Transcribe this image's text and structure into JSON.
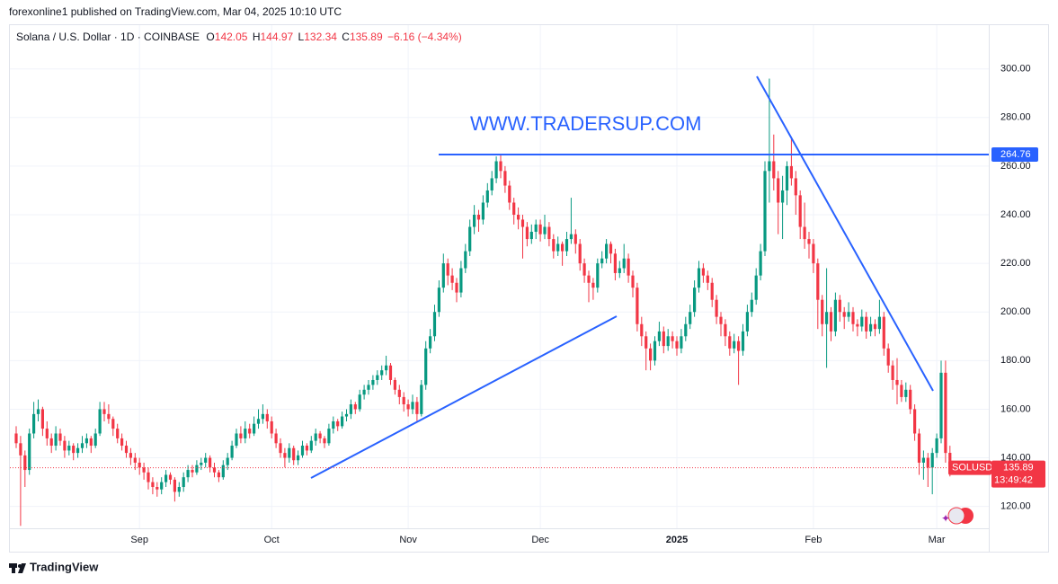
{
  "header": {
    "published": "forexonline1 published on TradingView.com, Mar 04, 2025 10:10 UTC",
    "symbol": "Solana / U.S. Dollar · 1D · COINBASE",
    "ohlc_labels": [
      "O",
      "H",
      "L",
      "C"
    ],
    "change": "−6.16 (−4.34%)",
    "watermark": "WWW.TRADERSUP.COM",
    "ticker": "SOLUSD",
    "countdown": "13:49:42",
    "footer": "TradingView"
  },
  "chart_data": {
    "type": "candlestick",
    "up_color": "#089981",
    "down_color": "#f23645",
    "line_color": "#2962ff",
    "grid": true,
    "ylim": [
      111,
      318
    ],
    "yticks": [
      {
        "value": 120,
        "label": "120.00"
      },
      {
        "value": 140,
        "label": "140.00"
      },
      {
        "value": 160,
        "label": "160.00"
      },
      {
        "value": 180,
        "label": "180.00"
      },
      {
        "value": 200,
        "label": "200.00"
      },
      {
        "value": 220,
        "label": "220.00"
      },
      {
        "value": 240,
        "label": "240.00"
      },
      {
        "value": 260,
        "label": "260.00"
      },
      {
        "value": 280,
        "label": "280.00"
      },
      {
        "value": 300,
        "label": "300.00"
      }
    ],
    "hline": 264.76,
    "categories": [
      null,
      null,
      null,
      null,
      null,
      null,
      null,
      null,
      null,
      null,
      null,
      null,
      null,
      null,
      null,
      null,
      null,
      null,
      null,
      null,
      null,
      null,
      null,
      null,
      null,
      null,
      null,
      null,
      "Sep",
      null,
      null,
      null,
      null,
      null,
      null,
      null,
      null,
      null,
      null,
      null,
      null,
      null,
      null,
      null,
      null,
      null,
      null,
      null,
      null,
      null,
      null,
      null,
      null,
      null,
      null,
      null,
      null,
      null,
      "Oct",
      null,
      null,
      null,
      null,
      null,
      null,
      null,
      null,
      null,
      null,
      null,
      null,
      null,
      null,
      null,
      null,
      null,
      null,
      null,
      null,
      null,
      null,
      null,
      null,
      null,
      null,
      null,
      null,
      null,
      null,
      "Nov",
      null,
      null,
      null,
      null,
      null,
      null,
      null,
      null,
      null,
      null,
      null,
      null,
      null,
      null,
      null,
      null,
      null,
      null,
      null,
      null,
      null,
      null,
      null,
      null,
      null,
      null,
      null,
      null,
      null,
      "Dec",
      null,
      null,
      null,
      null,
      null,
      null,
      null,
      null,
      null,
      null,
      null,
      null,
      null,
      null,
      null,
      null,
      null,
      null,
      null,
      null,
      null,
      null,
      null,
      null,
      null,
      null,
      null,
      null,
      null,
      null,
      "2025",
      null,
      null,
      null,
      null,
      null,
      null,
      null,
      null,
      null,
      null,
      null,
      null,
      null,
      null,
      null,
      null,
      null,
      null,
      null,
      null,
      null,
      null,
      null,
      null,
      null,
      null,
      null,
      null,
      null,
      null,
      "Feb",
      null,
      null,
      null,
      null,
      null,
      null,
      null,
      null,
      null,
      null,
      null,
      null,
      null,
      null,
      null,
      null,
      null,
      null,
      null,
      null,
      null,
      null,
      null,
      null,
      null,
      null,
      null,
      "Mar",
      null,
      null,
      null
    ],
    "candles": [
      [
        150,
        153,
        144,
        146
      ],
      [
        146,
        149,
        112,
        141
      ],
      [
        141,
        143,
        128,
        135
      ],
      [
        135,
        152,
        133,
        150
      ],
      [
        150,
        163,
        148,
        158
      ],
      [
        158,
        164,
        155,
        160
      ],
      [
        160,
        161,
        149,
        152
      ],
      [
        152,
        155,
        145,
        148
      ],
      [
        148,
        150,
        142,
        145
      ],
      [
        145,
        153,
        143,
        150
      ],
      [
        150,
        152,
        145,
        147
      ],
      [
        147,
        149,
        140,
        143
      ],
      [
        143,
        147,
        141,
        145
      ],
      [
        145,
        146,
        139,
        142
      ],
      [
        142,
        146,
        140,
        144
      ],
      [
        144,
        149,
        142,
        146
      ],
      [
        146,
        150,
        144,
        148
      ],
      [
        148,
        149,
        142,
        145
      ],
      [
        145,
        152,
        144,
        150
      ],
      [
        150,
        163,
        149,
        160
      ],
      [
        160,
        163,
        155,
        158
      ],
      [
        158,
        162,
        154,
        156
      ],
      [
        156,
        157,
        149,
        152
      ],
      [
        152,
        154,
        146,
        148
      ],
      [
        148,
        150,
        143,
        145
      ],
      [
        145,
        147,
        140,
        142
      ],
      [
        142,
        144,
        137,
        140
      ],
      [
        140,
        142,
        135,
        138
      ],
      [
        138,
        140,
        133,
        136
      ],
      [
        136,
        138,
        131,
        134
      ],
      [
        134,
        136,
        127,
        130
      ],
      [
        130,
        132,
        125,
        128
      ],
      [
        128,
        130,
        124,
        127
      ],
      [
        127,
        132,
        125,
        130
      ],
      [
        130,
        135,
        128,
        133
      ],
      [
        133,
        134,
        129,
        131
      ],
      [
        131,
        132,
        122,
        126
      ],
      [
        126,
        130,
        124,
        128
      ],
      [
        128,
        134,
        126,
        132
      ],
      [
        132,
        137,
        130,
        135
      ],
      [
        135,
        137,
        132,
        134
      ],
      [
        134,
        139,
        133,
        137
      ],
      [
        137,
        140,
        135,
        138
      ],
      [
        138,
        142,
        136,
        140
      ],
      [
        140,
        141,
        134,
        136
      ],
      [
        136,
        138,
        132,
        134
      ],
      [
        134,
        135,
        130,
        132
      ],
      [
        132,
        139,
        131,
        137
      ],
      [
        137,
        142,
        135,
        140
      ],
      [
        140,
        147,
        139,
        145
      ],
      [
        145,
        152,
        144,
        150
      ],
      [
        150,
        153,
        146,
        148
      ],
      [
        148,
        155,
        146,
        152
      ],
      [
        152,
        154,
        148,
        150
      ],
      [
        150,
        157,
        149,
        154
      ],
      [
        154,
        160,
        152,
        156
      ],
      [
        156,
        162,
        154,
        158
      ],
      [
        158,
        160,
        152,
        155
      ],
      [
        155,
        157,
        148,
        150
      ],
      [
        150,
        152,
        144,
        146
      ],
      [
        146,
        148,
        140,
        142
      ],
      [
        142,
        144,
        136,
        140
      ],
      [
        140,
        146,
        138,
        144
      ],
      [
        144,
        145,
        137,
        139
      ],
      [
        139,
        143,
        137,
        141
      ],
      [
        141,
        147,
        140,
        145
      ],
      [
        145,
        146,
        141,
        143
      ],
      [
        143,
        149,
        142,
        147
      ],
      [
        147,
        152,
        145,
        150
      ],
      [
        150,
        151,
        146,
        148
      ],
      [
        148,
        149,
        144,
        146
      ],
      [
        146,
        154,
        145,
        152
      ],
      [
        152,
        157,
        150,
        155
      ],
      [
        155,
        156,
        151,
        153
      ],
      [
        153,
        159,
        152,
        157
      ],
      [
        157,
        160,
        155,
        158
      ],
      [
        158,
        164,
        156,
        162
      ],
      [
        162,
        163,
        158,
        160
      ],
      [
        160,
        168,
        159,
        166
      ],
      [
        166,
        170,
        164,
        168
      ],
      [
        168,
        172,
        166,
        170
      ],
      [
        170,
        174,
        168,
        172
      ],
      [
        172,
        176,
        170,
        174
      ],
      [
        174,
        178,
        172,
        176
      ],
      [
        176,
        182,
        174,
        178
      ],
      [
        178,
        179,
        170,
        172
      ],
      [
        172,
        173,
        166,
        168
      ],
      [
        168,
        170,
        162,
        165
      ],
      [
        165,
        167,
        159,
        162
      ],
      [
        162,
        164,
        157,
        160
      ],
      [
        160,
        166,
        158,
        163
      ],
      [
        163,
        165,
        155,
        158
      ],
      [
        158,
        172,
        157,
        170
      ],
      [
        170,
        188,
        168,
        185
      ],
      [
        185,
        193,
        183,
        190
      ],
      [
        190,
        203,
        188,
        200
      ],
      [
        200,
        213,
        198,
        210
      ],
      [
        210,
        224,
        208,
        220
      ],
      [
        220,
        222,
        211,
        215
      ],
      [
        215,
        218,
        209,
        212
      ],
      [
        212,
        214,
        204,
        208
      ],
      [
        208,
        221,
        206,
        218
      ],
      [
        218,
        228,
        216,
        225
      ],
      [
        225,
        238,
        223,
        235
      ],
      [
        235,
        244,
        232,
        240
      ],
      [
        240,
        242,
        233,
        238
      ],
      [
        238,
        248,
        236,
        245
      ],
      [
        245,
        253,
        243,
        250
      ],
      [
        250,
        258,
        248,
        255
      ],
      [
        255,
        264,
        253,
        262
      ],
      [
        262,
        265,
        255,
        258
      ],
      [
        258,
        260,
        249,
        252
      ],
      [
        252,
        254,
        242,
        245
      ],
      [
        245,
        247,
        236,
        240
      ],
      [
        240,
        243,
        234,
        238
      ],
      [
        238,
        240,
        222,
        235
      ],
      [
        235,
        237,
        227,
        230
      ],
      [
        230,
        236,
        228,
        233
      ],
      [
        233,
        238,
        230,
        236
      ],
      [
        236,
        238,
        229,
        232
      ],
      [
        232,
        240,
        230,
        235
      ],
      [
        235,
        237,
        227,
        230
      ],
      [
        230,
        232,
        222,
        225
      ],
      [
        225,
        231,
        223,
        228
      ],
      [
        228,
        229,
        219,
        225
      ],
      [
        225,
        233,
        223,
        230
      ],
      [
        230,
        247,
        228,
        232
      ],
      [
        232,
        234,
        224,
        228
      ],
      [
        228,
        230,
        217,
        220
      ],
      [
        220,
        222,
        212,
        215
      ],
      [
        215,
        217,
        204,
        212
      ],
      [
        212,
        214,
        205,
        210
      ],
      [
        210,
        222,
        208,
        220
      ],
      [
        220,
        225,
        218,
        222
      ],
      [
        222,
        230,
        220,
        228
      ],
      [
        228,
        229,
        220,
        224
      ],
      [
        224,
        226,
        213,
        216
      ],
      [
        216,
        221,
        214,
        218
      ],
      [
        218,
        228,
        216,
        222
      ],
      [
        222,
        224,
        212,
        215
      ],
      [
        215,
        217,
        206,
        210
      ],
      [
        210,
        212,
        192,
        195
      ],
      [
        195,
        198,
        186,
        190
      ],
      [
        190,
        192,
        176,
        185
      ],
      [
        185,
        187,
        176,
        180
      ],
      [
        180,
        190,
        178,
        188
      ],
      [
        188,
        196,
        186,
        192
      ],
      [
        192,
        194,
        183,
        186
      ],
      [
        186,
        193,
        184,
        190
      ],
      [
        190,
        192,
        185,
        188
      ],
      [
        188,
        190,
        182,
        185
      ],
      [
        185,
        193,
        183,
        190
      ],
      [
        190,
        198,
        188,
        195
      ],
      [
        195,
        203,
        193,
        200
      ],
      [
        200,
        213,
        198,
        210
      ],
      [
        210,
        221,
        208,
        218
      ],
      [
        218,
        220,
        212,
        215
      ],
      [
        215,
        217,
        209,
        212
      ],
      [
        212,
        214,
        202,
        205
      ],
      [
        205,
        207,
        195,
        198
      ],
      [
        198,
        200,
        190,
        195
      ],
      [
        195,
        197,
        186,
        190
      ],
      [
        190,
        192,
        182,
        185
      ],
      [
        185,
        191,
        183,
        188
      ],
      [
        188,
        190,
        170,
        184
      ],
      [
        184,
        195,
        182,
        192
      ],
      [
        192,
        203,
        190,
        200
      ],
      [
        200,
        208,
        198,
        205
      ],
      [
        205,
        218,
        203,
        215
      ],
      [
        215,
        228,
        213,
        225
      ],
      [
        225,
        262,
        223,
        258
      ],
      [
        258,
        296,
        245,
        262
      ],
      [
        262,
        273,
        250,
        255
      ],
      [
        255,
        258,
        232,
        245
      ],
      [
        245,
        256,
        230,
        250
      ],
      [
        250,
        262,
        244,
        260
      ],
      [
        260,
        272,
        252,
        255
      ],
      [
        255,
        258,
        240,
        248
      ],
      [
        248,
        250,
        230,
        235
      ],
      [
        235,
        245,
        226,
        230
      ],
      [
        230,
        233,
        222,
        228
      ],
      [
        228,
        230,
        216,
        220
      ],
      [
        220,
        222,
        193,
        205
      ],
      [
        205,
        207,
        190,
        195
      ],
      [
        195,
        218,
        177,
        200
      ],
      [
        200,
        202,
        188,
        192
      ],
      [
        192,
        208,
        190,
        205
      ],
      [
        205,
        207,
        196,
        200
      ],
      [
        200,
        202,
        193,
        198
      ],
      [
        198,
        204,
        196,
        200
      ],
      [
        200,
        202,
        192,
        195
      ],
      [
        195,
        197,
        190,
        194
      ],
      [
        194,
        201,
        192,
        198
      ],
      [
        198,
        200,
        189,
        192
      ],
      [
        192,
        198,
        190,
        195
      ],
      [
        195,
        197,
        190,
        193
      ],
      [
        193,
        205,
        191,
        198
      ],
      [
        198,
        200,
        182,
        185
      ],
      [
        185,
        187,
        175,
        178
      ],
      [
        178,
        180,
        168,
        172
      ],
      [
        172,
        181,
        162,
        170
      ],
      [
        170,
        172,
        163,
        165
      ],
      [
        165,
        171,
        163,
        168
      ],
      [
        168,
        170,
        158,
        160
      ],
      [
        160,
        162,
        147,
        150
      ],
      [
        150,
        152,
        133,
        138
      ],
      [
        138,
        143,
        131,
        140
      ],
      [
        140,
        142,
        128,
        136
      ],
      [
        136,
        144,
        125,
        142
      ],
      [
        142,
        150,
        140,
        148
      ],
      [
        148,
        180,
        146,
        175
      ],
      [
        175,
        180,
        138,
        142
      ],
      [
        142.05,
        144.97,
        132.34,
        135.89
      ]
    ]
  }
}
